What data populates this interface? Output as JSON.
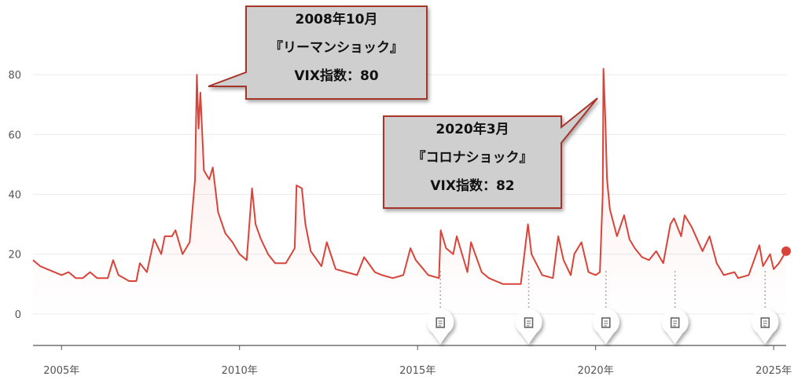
{
  "chart_data": {
    "type": "line",
    "x": [
      2004.2,
      2004.4,
      2004.6,
      2004.8,
      2005.0,
      2005.2,
      2005.4,
      2005.6,
      2005.8,
      2006.0,
      2006.3,
      2006.45,
      2006.6,
      2006.9,
      2007.1,
      2007.2,
      2007.4,
      2007.6,
      2007.8,
      2007.9,
      2008.1,
      2008.2,
      2008.4,
      2008.6,
      2008.75,
      2008.8,
      2008.85,
      2008.9,
      2009.0,
      2009.15,
      2009.25,
      2009.4,
      2009.6,
      2009.8,
      2010.0,
      2010.2,
      2010.35,
      2010.45,
      2010.6,
      2010.8,
      2011.0,
      2011.3,
      2011.55,
      2011.6,
      2011.75,
      2011.85,
      2012.0,
      2012.3,
      2012.45,
      2012.7,
      2013.0,
      2013.3,
      2013.5,
      2013.8,
      2014.0,
      2014.3,
      2014.6,
      2014.8,
      2014.95,
      2015.3,
      2015.6,
      2015.65,
      2015.8,
      2016.0,
      2016.1,
      2016.4,
      2016.5,
      2016.8,
      2017.0,
      2017.4,
      2017.9,
      2018.1,
      2018.2,
      2018.5,
      2018.8,
      2018.95,
      2019.1,
      2019.3,
      2019.4,
      2019.6,
      2019.8,
      2020.0,
      2020.12,
      2020.2,
      2020.22,
      2020.27,
      2020.32,
      2020.4,
      2020.6,
      2020.8,
      2020.95,
      2021.1,
      2021.3,
      2021.5,
      2021.7,
      2021.9,
      2022.1,
      2022.2,
      2022.4,
      2022.5,
      2022.7,
      2022.85,
      2023.0,
      2023.2,
      2023.4,
      2023.6,
      2023.9,
      2024.0,
      2024.3,
      2024.6,
      2024.7,
      2024.9,
      2025.0,
      2025.15,
      2025.3,
      2025.35
    ],
    "series": [
      {
        "name": "VIX",
        "color": "#d9443a",
        "values": [
          18,
          16,
          15,
          14,
          13,
          14,
          12,
          12,
          14,
          12,
          12,
          18,
          13,
          11,
          11,
          17,
          14,
          25,
          20,
          26,
          26,
          28,
          20,
          24,
          45,
          80,
          62,
          74,
          48,
          45,
          49,
          34,
          27,
          24,
          20,
          18,
          42,
          30,
          25,
          20,
          17,
          17,
          22,
          43,
          42,
          30,
          21,
          16,
          24,
          15,
          14,
          13,
          19,
          14,
          13,
          12,
          13,
          22,
          18,
          13,
          12,
          28,
          22,
          20,
          26,
          14,
          24,
          14,
          12,
          10,
          10,
          30,
          20,
          13,
          12,
          26,
          18,
          13,
          20,
          24,
          14,
          13,
          14,
          40,
          82,
          66,
          45,
          35,
          26,
          33,
          25,
          22,
          19,
          18,
          21,
          17,
          30,
          32,
          26,
          33,
          29,
          25,
          21,
          26,
          17,
          13,
          14,
          12,
          13,
          23,
          16,
          20,
          15,
          17,
          20,
          21
        ]
      }
    ],
    "xlim": [
      2004.2,
      2025.35
    ],
    "ylim": [
      -10,
      100
    ],
    "xticks": [
      {
        "value": 2005,
        "label": "2005年"
      },
      {
        "value": 2010,
        "label": "2010年"
      },
      {
        "value": 2015,
        "label": "2015年"
      },
      {
        "value": 2020,
        "label": "2020年"
      },
      {
        "value": 2025,
        "label": "2025年"
      }
    ],
    "yticks": [
      0,
      20,
      40,
      60,
      80
    ],
    "grid": true,
    "event_markers": [
      2015.64,
      2018.12,
      2020.29,
      2022.23,
      2024.76
    ],
    "annotations": [
      {
        "lines": [
          "2008年10月",
          "『リーマンショック』",
          "VIX指数：80"
        ]
      },
      {
        "lines": [
          "2020年3月",
          "『コロナショック』",
          "VIX指数：82"
        ]
      }
    ]
  }
}
